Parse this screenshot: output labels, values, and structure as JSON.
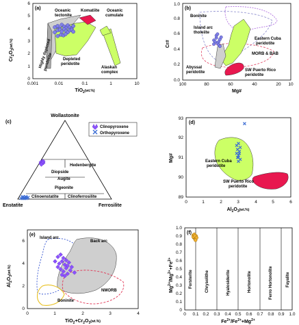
{
  "figure": {
    "panels": [
      {
        "id": "a",
        "label": "(a)",
        "xlabel": "TiO",
        "xlabel_sub": "2",
        "xlabel_unit": "(wt.%)",
        "ylabel": "Cr",
        "ylabel_sub1": "2",
        "ylabel_mid": "O",
        "ylabel_sub2": "3",
        "ylabel_unit": "(wt.%)",
        "xticks": [
          "0.001",
          "0.01",
          "0.1",
          "1",
          "10"
        ],
        "yticks": [
          "0",
          "1",
          "2",
          "3",
          "4",
          "5",
          "6"
        ],
        "annotations": [
          "Oceanic",
          "tectonite",
          "Komatiite",
          "Oceanic",
          "cumulate",
          "Highly depleted",
          "peridotite",
          "Depleted",
          "peridotite",
          "Alaskan",
          "complex"
        ]
      },
      {
        "id": "b",
        "label": "(b)",
        "xlabel": "Mg#",
        "ylabel": "Cr#",
        "xticks": [
          "100",
          "80",
          "60",
          "40",
          "20",
          "10"
        ],
        "yticks": [
          "0.0",
          "0.2",
          "0.4",
          "0.6",
          "0.8",
          "1.0"
        ],
        "annotations": [
          "Boninite",
          "Island arc",
          "tholeiite",
          "Eastern Cuba",
          "peridotite",
          "MORB & BAB",
          "Abyssal",
          "peridotite",
          "SW Puerto Rico",
          "peridotite"
        ]
      },
      {
        "id": "c",
        "label": "(c)",
        "apex": "Wollastonite",
        "left": "Enstatite",
        "right": "Ferrosilite",
        "fields": [
          "Diopside",
          "Hedenbergite",
          "Augite",
          "Pigeonite",
          "Clinoenstatite",
          "Clinoferrosilite"
        ],
        "legend": [
          "Clinopyroxene",
          "Orthopyroxene"
        ]
      },
      {
        "id": "d",
        "label": "(d)",
        "xlabel": "Al",
        "xlabel_sub1": "2",
        "xlabel_mid": "O",
        "xlabel_sub2": "3",
        "xlabel_unit": "(wt.%)",
        "ylabel": "Mg#",
        "xticks": [
          "0",
          "1",
          "2",
          "3",
          "4",
          "5",
          "6"
        ],
        "yticks": [
          "89",
          "90",
          "91",
          "92",
          "93"
        ],
        "annotations": [
          "Eastern Cuba",
          "peridotite",
          "SW Puerto Rico",
          "peridotite"
        ]
      },
      {
        "id": "e",
        "label": "(e)",
        "xlabel": "TiO",
        "xlabel_sub1": "2",
        "xlabel_plus": "+Cr",
        "xlabel_sub2": "2",
        "xlabel_mid": "O",
        "xlabel_sub3": "3",
        "xlabel_unit": "(wt.%)",
        "ylabel": "Al",
        "ylabel_sub1": "2",
        "ylabel_mid": "O",
        "ylabel_sub2": "3",
        "ylabel_unit": "(wt.%)",
        "xticks": [
          "0",
          "1",
          "2",
          "3",
          "4"
        ],
        "yticks": [
          "0",
          "2",
          "4",
          "6"
        ],
        "annotations": [
          "Island arc",
          "Back arc",
          "NMORB",
          "Boninite"
        ]
      },
      {
        "id": "f",
        "label": "(f)",
        "xlabel": "Fe",
        "xlabel_sup1": "2+",
        "xlabel_mid": "/Fe",
        "xlabel_sup2": "2+",
        "xlabel_end": "+Mg",
        "xlabel_sup3": "2+",
        "ylabel": "Mg",
        "ylabel_sup1": "2+",
        "ylabel_mid": "/Mg",
        "ylabel_sup2": "2+",
        "ylabel_mid2": "+Fe",
        "ylabel_sup3": "2+",
        "xticks": [
          "0",
          "0.1",
          "0.2",
          "0.3",
          "0.4",
          "0.5",
          "0.6",
          "0.7",
          "0.8",
          "0.9",
          "1.0"
        ],
        "yticks": [
          "0",
          "0.1",
          "0.2",
          "0.3",
          "0.4",
          "0.5",
          "0.6",
          "0.7",
          "0.8",
          "0.9",
          "1.0"
        ],
        "fields": [
          "Forsterite",
          "Chrysolithe",
          "Hyalosiderite",
          "Hortonolite",
          "Ferro Hortonolite",
          "Fayalite"
        ]
      }
    ]
  },
  "colors": {
    "light_green": "#ccff66",
    "grey": "#cfcfcf",
    "crimson": "#e8184f",
    "blue_purple": "#8080e8",
    "purple": "#8c52ff",
    "cross_blue": "#3b6cd4",
    "orange": "#f0b030"
  },
  "chart_data": [
    {
      "panel": "a",
      "type": "scatter",
      "x_scale": "log",
      "xlim": [
        0.001,
        10
      ],
      "ylim": [
        0,
        6
      ],
      "series": [
        {
          "x": [
            0.007,
            0.009,
            0.011,
            0.013,
            0.016,
            0.019,
            0.022,
            0.026,
            0.031,
            0.036,
            0.007,
            0.009,
            0.011,
            0.013,
            0.016,
            0.019,
            0.022,
            0.026,
            0.031,
            0.036,
            0.009,
            0.012,
            0.015,
            0.018
          ],
          "y": [
            4.1,
            4.2,
            4.0,
            4.3,
            4.15,
            4.05,
            4.25,
            4.1,
            4.0,
            4.2,
            3.7,
            3.85,
            3.9,
            3.75,
            3.95,
            3.8,
            3.7,
            3.85,
            3.9,
            3.75,
            3.4,
            3.5,
            3.45,
            3.55
          ]
        }
      ]
    },
    {
      "panel": "b",
      "type": "scatter",
      "x_reversed": true,
      "xlim": [
        100,
        10
      ],
      "ylim": [
        0,
        1
      ],
      "series": [
        {
          "x": [
            74,
            72,
            70,
            69,
            71,
            73,
            68,
            70,
            72,
            74,
            69,
            71
          ],
          "y": [
            0.52,
            0.55,
            0.5,
            0.53,
            0.48,
            0.5,
            0.56,
            0.46,
            0.58,
            0.47,
            0.44,
            0.6
          ]
        }
      ]
    },
    {
      "panel": "c",
      "type": "ternary",
      "series": [
        {
          "name": "Clinopyroxene",
          "points": [
            [
              46,
              2
            ],
            [
              47,
              3
            ],
            [
              45,
              3
            ],
            [
              48,
              2
            ],
            [
              46,
              4
            ],
            [
              47,
              1
            ],
            [
              45,
              2
            ],
            [
              48,
              3
            ],
            [
              46,
              3
            ],
            [
              44,
              3
            ]
          ]
        },
        {
          "name": "Orthopyroxene",
          "points": [
            [
              1,
              3
            ],
            [
              2,
              4
            ],
            [
              1,
              5
            ],
            [
              3,
              4
            ],
            [
              2,
              6
            ],
            [
              1,
              7
            ],
            [
              2,
              8
            ],
            [
              3,
              7
            ],
            [
              1,
              9
            ],
            [
              2,
              10
            ]
          ]
        }
      ]
    },
    {
      "panel": "d",
      "type": "scatter",
      "xlim": [
        0,
        6
      ],
      "ylim": [
        89,
        93
      ],
      "series": [
        {
          "name": "Orthopyroxene",
          "x": [
            2.9,
            3.0,
            3.1,
            2.95,
            3.05,
            3.0,
            2.9,
            3.1,
            3.0,
            2.95,
            3.05,
            3.0,
            3.35
          ],
          "y": [
            91.2,
            91.0,
            90.9,
            91.4,
            91.3,
            91.1,
            91.6,
            91.5,
            90.8,
            91.0,
            91.2,
            91.7,
            92.7
          ]
        }
      ]
    },
    {
      "panel": "e",
      "type": "scatter",
      "xlim": [
        0,
        4
      ],
      "ylim": [
        0,
        7
      ],
      "series": [
        {
          "x": [
            1.1,
            1.2,
            1.3,
            1.4,
            1.15,
            1.25,
            1.35,
            1.45,
            1.5,
            1.6,
            1.2,
            1.3,
            1.4,
            1.55,
            1.7,
            1.0,
            1.1,
            1.25,
            1.35,
            1.45
          ],
          "y": [
            4.6,
            4.8,
            4.5,
            4.3,
            4.0,
            4.2,
            3.9,
            3.8,
            4.1,
            3.7,
            3.5,
            3.3,
            3.6,
            3.4,
            3.2,
            4.2,
            3.7,
            3.0,
            2.9,
            3.1
          ]
        }
      ]
    },
    {
      "panel": "f",
      "type": "scatter",
      "xlim": [
        0,
        1
      ],
      "ylim": [
        0,
        1
      ],
      "series": [
        {
          "x": [
            0.08,
            0.09,
            0.1,
            0.085,
            0.095,
            0.105,
            0.09,
            0.1,
            0.08,
            0.095,
            0.11,
            0.1
          ],
          "y": [
            0.91,
            0.9,
            0.89,
            0.88,
            0.87,
            0.9,
            0.92,
            0.86,
            0.89,
            0.9,
            0.88,
            0.85
          ]
        }
      ]
    }
  ]
}
